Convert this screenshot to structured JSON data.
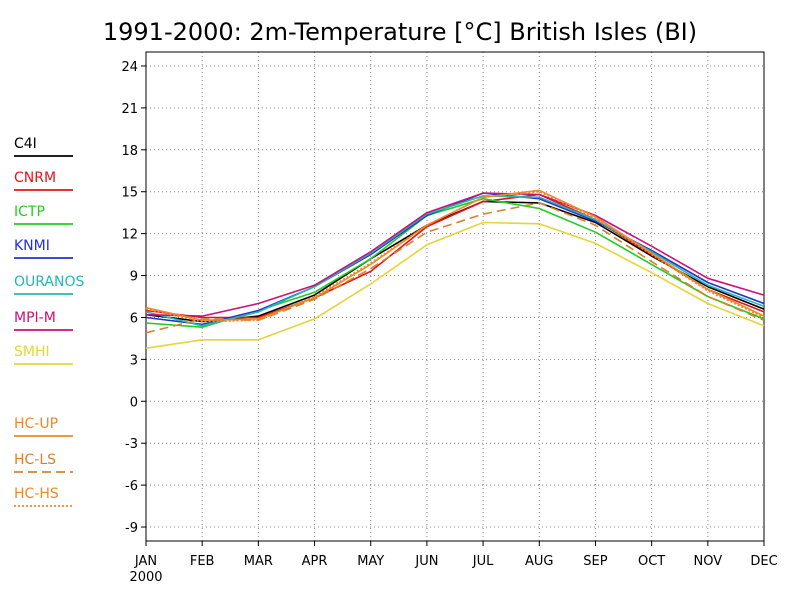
{
  "chart_data": {
    "type": "line",
    "title": "1991-2000: 2m-Temperature [°C] British Isles (BI)",
    "xlabel": "",
    "ylabel": "",
    "categories": [
      "JAN",
      "FEB",
      "MAR",
      "APR",
      "MAY",
      "JUN",
      "JUL",
      "AUG",
      "SEP",
      "OCT",
      "NOV",
      "DEC"
    ],
    "x_sublabel": "2000",
    "ylim": [
      -10,
      25
    ],
    "yticks": [
      -9,
      -6,
      -3,
      0,
      3,
      6,
      9,
      12,
      15,
      18,
      21,
      24
    ],
    "grid": true,
    "legend_position": "left",
    "series": [
      {
        "name": "C4I",
        "color": "#000000",
        "dash": "solid",
        "values": [
          6.2,
          5.7,
          6.1,
          7.6,
          10.2,
          12.6,
          14.3,
          14.2,
          12.8,
          10.4,
          8.2,
          6.6
        ]
      },
      {
        "name": "CNRM",
        "color": "#e8121a",
        "dash": "solid",
        "values": [
          6.5,
          6.0,
          6.0,
          7.4,
          9.3,
          12.5,
          14.3,
          14.8,
          13.0,
          10.5,
          8.0,
          6.4
        ]
      },
      {
        "name": "ICTP",
        "color": "#22cc22",
        "dash": "solid",
        "values": [
          5.6,
          5.3,
          6.5,
          7.8,
          10.2,
          13.3,
          14.5,
          13.8,
          12.1,
          9.8,
          7.5,
          5.9
        ]
      },
      {
        "name": "KNMI",
        "color": "#2233cc",
        "dash": "solid",
        "values": [
          6.0,
          5.5,
          6.5,
          8.2,
          10.5,
          13.3,
          14.9,
          14.5,
          12.9,
          10.8,
          8.5,
          7.0
        ]
      },
      {
        "name": "OURANOS",
        "color": "#22b8b8",
        "dash": "solid",
        "values": [
          6.4,
          5.4,
          6.4,
          8.2,
          10.6,
          13.4,
          14.7,
          14.6,
          13.0,
          10.7,
          8.3,
          6.8
        ]
      },
      {
        "name": "MPI-M",
        "color": "#cc1177",
        "dash": "solid",
        "values": [
          6.2,
          6.1,
          7.0,
          8.3,
          10.7,
          13.5,
          14.9,
          14.8,
          13.3,
          11.1,
          8.8,
          7.6
        ]
      },
      {
        "name": "SMHI",
        "color": "#e6d43a",
        "dash": "solid",
        "values": [
          3.8,
          4.4,
          4.4,
          5.9,
          8.4,
          11.2,
          12.8,
          12.7,
          11.3,
          9.2,
          7.0,
          5.4
        ]
      },
      {
        "name": "HC-UP",
        "color": "#ec8a2a",
        "dash": "solid",
        "values": [
          6.7,
          5.8,
          5.9,
          7.4,
          9.8,
          12.6,
          14.6,
          15.1,
          13.2,
          10.6,
          8.0,
          6.1
        ]
      },
      {
        "name": "HC-LS",
        "color": "#d9802e",
        "dash": "dashed",
        "values": [
          4.9,
          5.9,
          5.8,
          7.3,
          9.5,
          12.1,
          13.4,
          14.2,
          12.6,
          10.0,
          7.5,
          5.8
        ]
      },
      {
        "name": "HC-HS",
        "color": "#ec8a2a",
        "dash": "dotted",
        "values": [
          6.6,
          5.7,
          5.8,
          7.5,
          9.9,
          12.6,
          14.6,
          15.0,
          13.1,
          10.5,
          7.9,
          6.0
        ]
      }
    ]
  }
}
